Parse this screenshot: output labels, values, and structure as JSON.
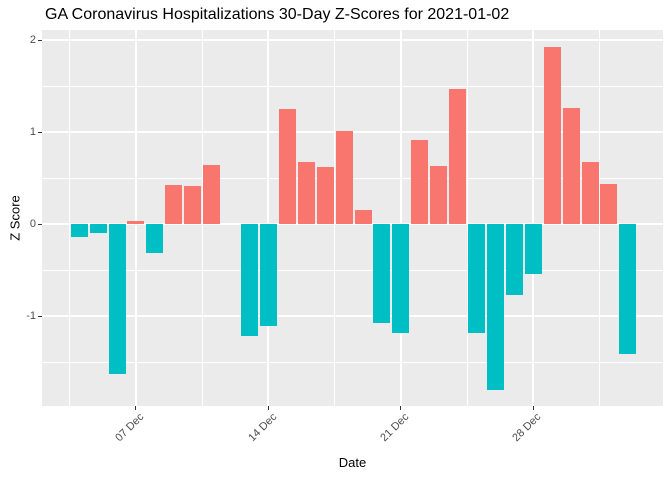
{
  "chart_data": {
    "type": "bar",
    "title": "GA Coronavirus Hospitalizations 30-Day Z-Scores for 2021-01-02",
    "xlabel": "Date",
    "ylabel": "Z Score",
    "x": [
      "2020-12-04",
      "2020-12-05",
      "2020-12-06",
      "2020-12-07",
      "2020-12-08",
      "2020-12-09",
      "2020-12-10",
      "2020-12-11",
      "2020-12-12",
      "2020-12-13",
      "2020-12-14",
      "2020-12-15",
      "2020-12-16",
      "2020-12-17",
      "2020-12-18",
      "2020-12-19",
      "2020-12-20",
      "2020-12-21",
      "2020-12-22",
      "2020-12-23",
      "2020-12-24",
      "2020-12-25",
      "2020-12-26",
      "2020-12-27",
      "2020-12-28",
      "2020-12-29",
      "2020-12-30",
      "2020-12-31",
      "2021-01-01",
      "2021-01-02"
    ],
    "values": [
      -0.14,
      -0.1,
      -1.63,
      0.03,
      -0.31,
      0.42,
      0.41,
      0.64,
      0.0,
      -1.22,
      -1.11,
      1.25,
      0.67,
      0.62,
      1.01,
      0.15,
      -1.08,
      -1.18,
      0.91,
      0.63,
      1.47,
      -1.18,
      -1.8,
      -0.77,
      -0.54,
      1.92,
      1.26,
      0.67,
      0.43,
      -1.41
    ],
    "y_ticks": [
      2,
      1,
      0,
      -1
    ],
    "y_tick_labels": [
      "2",
      "1",
      "0",
      "-1"
    ],
    "x_tick_dates": [
      "2020-12-07",
      "2020-12-14",
      "2020-12-21",
      "2020-12-28"
    ],
    "x_tick_labels": [
      "07 Dec",
      "14 Dec",
      "21 Dec",
      "28 Dec"
    ],
    "ylim": [
      -1.97,
      2.11
    ],
    "grid": true,
    "legend": false,
    "colors": {
      "positive": "#F8766D",
      "negative": "#00BFC4",
      "panel_background": "#EBEBEB",
      "gridline": "#FFFFFF",
      "tick_label": "#4D4D4D",
      "tick_mark": "#333333",
      "text": "#000000"
    }
  }
}
